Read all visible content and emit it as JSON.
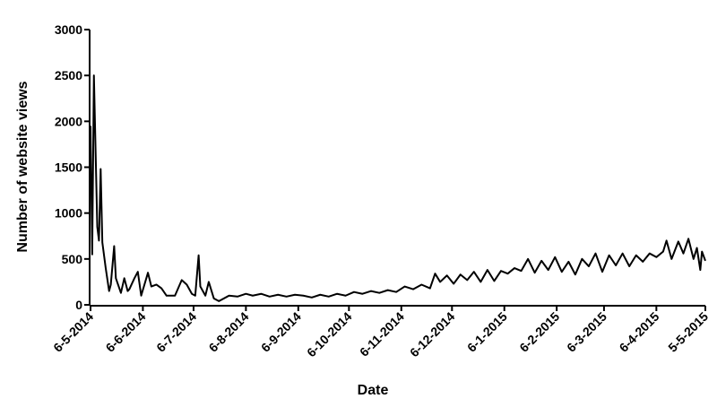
{
  "chart_data": {
    "type": "line",
    "x_label": "Date",
    "y_label": "Number of website views",
    "color": "#000000",
    "x": [
      "2014-05-06",
      "2014-05-07",
      "2014-05-08",
      "2014-05-10",
      "2014-05-11",
      "2014-05-12",
      "2014-05-13",
      "2014-05-15",
      "2014-05-17",
      "2014-05-18",
      "2014-05-20",
      "2014-05-21",
      "2014-05-24",
      "2014-05-26",
      "2014-05-28",
      "2014-05-29",
      "2014-06-01",
      "2014-06-03",
      "2014-06-05",
      "2014-06-09",
      "2014-06-11",
      "2014-06-14",
      "2014-06-17",
      "2014-06-20",
      "2014-06-25",
      "2014-06-29",
      "2014-07-02",
      "2014-07-05",
      "2014-07-07",
      "2014-07-09",
      "2014-07-10",
      "2014-07-13",
      "2014-07-15",
      "2014-07-18",
      "2014-07-21",
      "2014-07-27",
      "2014-08-01",
      "2014-08-06",
      "2014-08-10",
      "2014-08-15",
      "2014-08-20",
      "2014-08-25",
      "2014-08-30",
      "2014-09-04",
      "2014-09-09",
      "2014-09-14",
      "2014-09-19",
      "2014-09-24",
      "2014-09-29",
      "2014-10-04",
      "2014-10-09",
      "2014-10-14",
      "2014-10-19",
      "2014-10-24",
      "2014-10-29",
      "2014-11-03",
      "2014-11-08",
      "2014-11-13",
      "2014-11-18",
      "2014-11-23",
      "2014-11-26",
      "2014-11-29",
      "2014-12-03",
      "2014-12-07",
      "2014-12-11",
      "2014-12-15",
      "2014-12-19",
      "2014-12-23",
      "2014-12-27",
      "2014-12-31",
      "2015-01-04",
      "2015-01-08",
      "2015-01-12",
      "2015-01-16",
      "2015-01-20",
      "2015-01-24",
      "2015-01-28",
      "2015-02-01",
      "2015-02-05",
      "2015-02-09",
      "2015-02-13",
      "2015-02-17",
      "2015-02-21",
      "2015-02-25",
      "2015-03-01",
      "2015-03-05",
      "2015-03-09",
      "2015-03-13",
      "2015-03-17",
      "2015-03-21",
      "2015-03-25",
      "2015-03-29",
      "2015-04-02",
      "2015-04-06",
      "2015-04-10",
      "2015-04-12",
      "2015-04-15",
      "2015-04-19",
      "2015-04-22",
      "2015-04-25",
      "2015-04-28",
      "2015-04-30",
      "2015-05-02",
      "2015-05-03",
      "2015-05-05"
    ],
    "values": [
      1950,
      550,
      2500,
      850,
      700,
      1480,
      680,
      400,
      150,
      220,
      640,
      290,
      130,
      290,
      150,
      170,
      290,
      360,
      100,
      350,
      200,
      220,
      180,
      100,
      100,
      270,
      220,
      120,
      100,
      540,
      200,
      100,
      250,
      70,
      40,
      100,
      90,
      120,
      100,
      120,
      90,
      110,
      90,
      110,
      100,
      80,
      110,
      90,
      120,
      100,
      140,
      120,
      150,
      130,
      160,
      140,
      200,
      170,
      220,
      180,
      340,
      250,
      320,
      230,
      330,
      270,
      360,
      250,
      380,
      260,
      370,
      340,
      400,
      370,
      500,
      350,
      480,
      380,
      520,
      360,
      470,
      330,
      500,
      420,
      560,
      360,
      540,
      430,
      560,
      420,
      540,
      470,
      560,
      520,
      580,
      700,
      500,
      690,
      560,
      720,
      500,
      620,
      380,
      580,
      480
    ],
    "xlim": [
      "2014-05-06",
      "2015-05-05"
    ],
    "xticks": [
      {
        "value": "2014-05-06",
        "label": "6-5-2014"
      },
      {
        "value": "2014-06-06",
        "label": "6-6-2014"
      },
      {
        "value": "2014-07-06",
        "label": "6-7-2014"
      },
      {
        "value": "2014-08-06",
        "label": "6-8-2014"
      },
      {
        "value": "2014-09-06",
        "label": "6-9-2014"
      },
      {
        "value": "2014-10-06",
        "label": "6-10-2014"
      },
      {
        "value": "2014-11-06",
        "label": "6-11-2014"
      },
      {
        "value": "2014-12-06",
        "label": "6-12-2014"
      },
      {
        "value": "2015-01-06",
        "label": "6-1-2015"
      },
      {
        "value": "2015-02-06",
        "label": "6-2-2015"
      },
      {
        "value": "2015-03-06",
        "label": "6-3-2015"
      },
      {
        "value": "2015-04-06",
        "label": "6-4-2015"
      },
      {
        "value": "2015-05-05",
        "label": "5-5-2015"
      }
    ],
    "ylim": [
      0,
      3000
    ],
    "yticks": [
      0,
      500,
      1000,
      1500,
      2000,
      2500,
      3000
    ],
    "grid": false
  }
}
